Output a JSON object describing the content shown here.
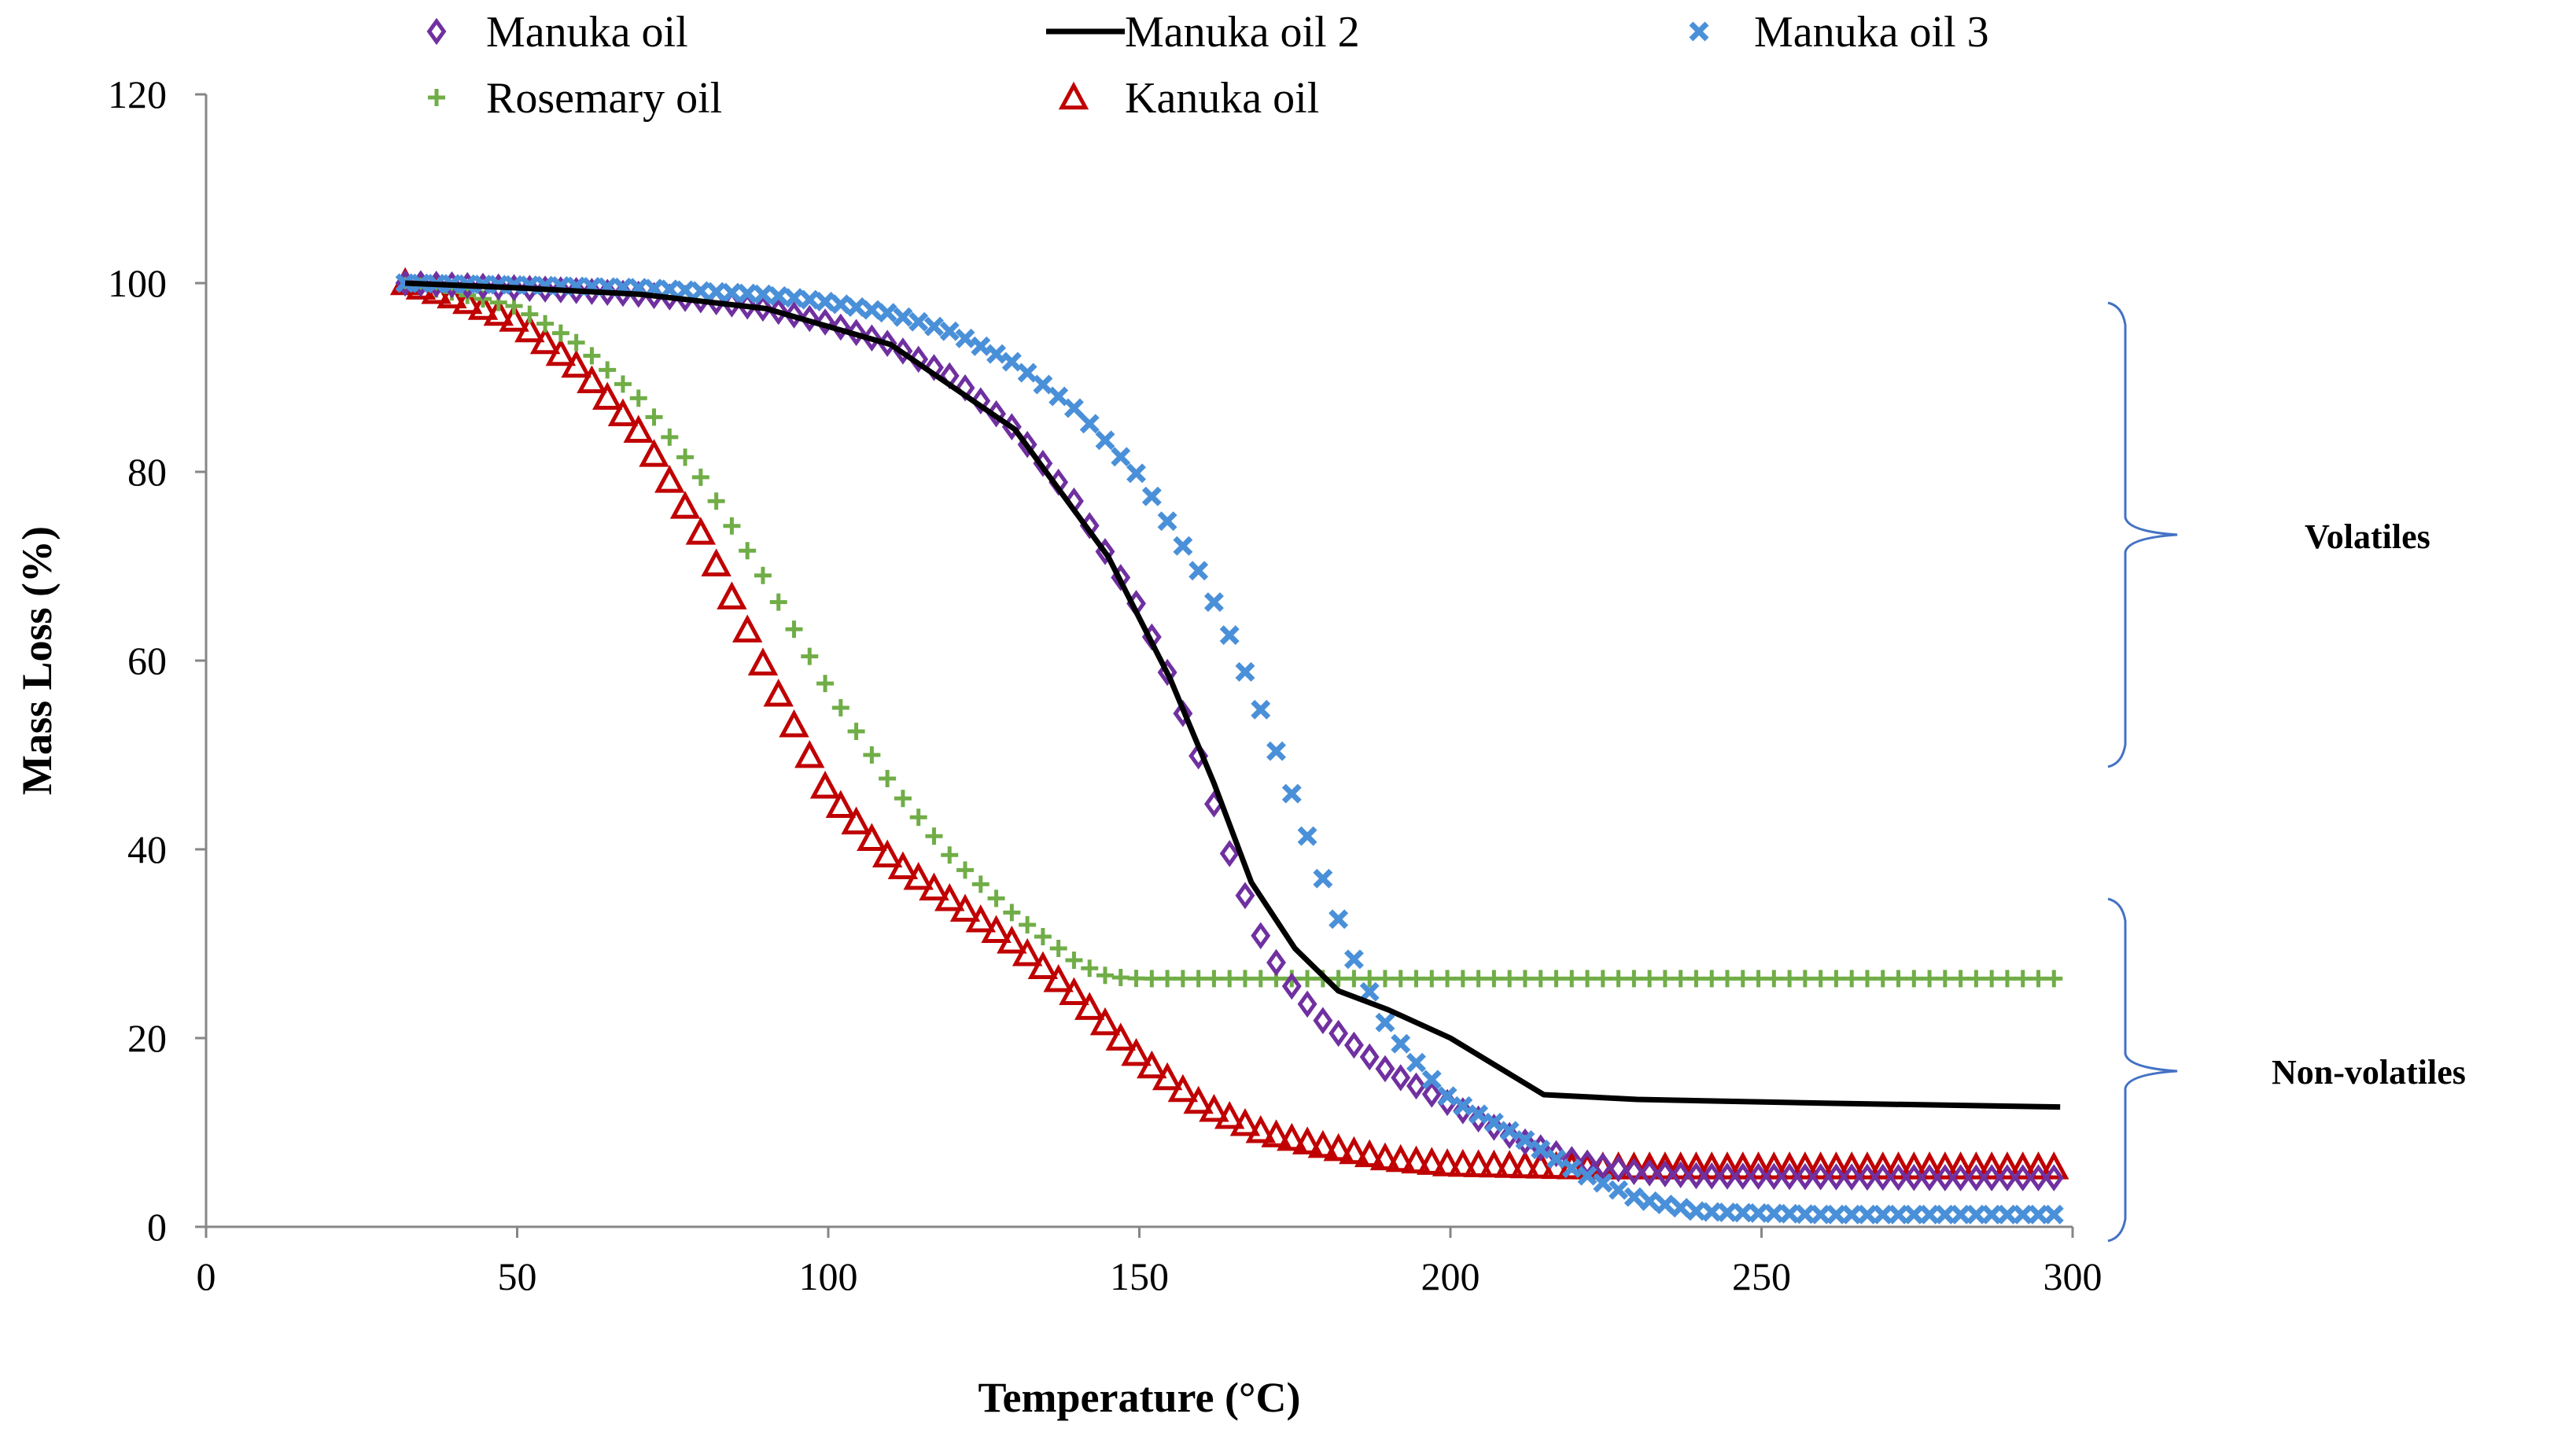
{
  "chart_data": {
    "type": "scatter",
    "title": "",
    "xlabel": "Temperature (°C)",
    "ylabel": "Mass Loss (%)",
    "xlim": [
      0,
      300
    ],
    "ylim": [
      0,
      120
    ],
    "xticks": [
      0,
      50,
      100,
      150,
      200,
      250,
      300
    ],
    "yticks": [
      0,
      20,
      40,
      60,
      80,
      100,
      120
    ],
    "grid": false,
    "legend_position": "top",
    "series": [
      {
        "name": "Manuka oil",
        "marker": "diamond",
        "color": "#7030A0",
        "points": [
          [
            32,
            100
          ],
          [
            40,
            99.8
          ],
          [
            50,
            99.5
          ],
          [
            60,
            99.2
          ],
          [
            70,
            98.8
          ],
          [
            80,
            98.2
          ],
          [
            90,
            97.3
          ],
          [
            100,
            95.8
          ],
          [
            110,
            93.5
          ],
          [
            120,
            90.0
          ],
          [
            130,
            84.5
          ],
          [
            140,
            76.5
          ],
          [
            150,
            65.5
          ],
          [
            155,
            58.0
          ],
          [
            160,
            49.0
          ],
          [
            165,
            38.5
          ],
          [
            170,
            30.0
          ],
          [
            175,
            25.0
          ],
          [
            180,
            21.5
          ],
          [
            190,
            16.5
          ],
          [
            200,
            13.0
          ],
          [
            210,
            9.5
          ],
          [
            220,
            7.0
          ],
          [
            230,
            5.8
          ],
          [
            240,
            5.4
          ],
          [
            260,
            5.3
          ],
          [
            280,
            5.2
          ],
          [
            298,
            5.2
          ]
        ]
      },
      {
        "name": "Manuka oil 2",
        "marker": "line",
        "color": "#000000",
        "points": [
          [
            32,
            100
          ],
          [
            50,
            99.5
          ],
          [
            70,
            98.8
          ],
          [
            90,
            97.3
          ],
          [
            110,
            93.5
          ],
          [
            130,
            84.5
          ],
          [
            145,
            71.0
          ],
          [
            155,
            58.0
          ],
          [
            162,
            47.0
          ],
          [
            168,
            36.5
          ],
          [
            175,
            29.5
          ],
          [
            182,
            25.0
          ],
          [
            190,
            23.0
          ],
          [
            200,
            20.0
          ],
          [
            210,
            16.0
          ],
          [
            215,
            14.0
          ],
          [
            230,
            13.5
          ],
          [
            260,
            13.1
          ],
          [
            298,
            12.7
          ]
        ]
      },
      {
        "name": "Manuka oil 3",
        "marker": "x",
        "color": "#4A90D9",
        "points": [
          [
            32,
            100
          ],
          [
            50,
            99.8
          ],
          [
            70,
            99.5
          ],
          [
            90,
            98.8
          ],
          [
            100,
            98.0
          ],
          [
            110,
            96.8
          ],
          [
            120,
            94.8
          ],
          [
            130,
            91.5
          ],
          [
            140,
            86.5
          ],
          [
            150,
            79.5
          ],
          [
            160,
            69.0
          ],
          [
            165,
            62.0
          ],
          [
            170,
            54.0
          ],
          [
            175,
            45.0
          ],
          [
            180,
            36.0
          ],
          [
            185,
            27.5
          ],
          [
            190,
            21.0
          ],
          [
            195,
            17.0
          ],
          [
            200,
            13.5
          ],
          [
            210,
            10.0
          ],
          [
            220,
            6.0
          ],
          [
            230,
            3.0
          ],
          [
            240,
            1.6
          ],
          [
            260,
            1.3
          ],
          [
            298,
            1.3
          ]
        ]
      },
      {
        "name": "Rosemary oil",
        "marker": "plus",
        "color": "#70AD47",
        "points": [
          [
            32,
            100
          ],
          [
            40,
            99.0
          ],
          [
            50,
            97.5
          ],
          [
            60,
            93.5
          ],
          [
            70,
            87.5
          ],
          [
            80,
            79.0
          ],
          [
            90,
            68.5
          ],
          [
            100,
            57.0
          ],
          [
            110,
            47.0
          ],
          [
            120,
            39.0
          ],
          [
            130,
            33.0
          ],
          [
            140,
            28.0
          ],
          [
            145,
            26.5
          ],
          [
            150,
            26.3
          ],
          [
            200,
            26.3
          ],
          [
            298,
            26.3
          ]
        ]
      },
      {
        "name": "Kanuka oil",
        "marker": "triangle",
        "color": "#C00000",
        "points": [
          [
            32,
            100
          ],
          [
            40,
            98.5
          ],
          [
            50,
            96.0
          ],
          [
            60,
            91.0
          ],
          [
            70,
            84.0
          ],
          [
            80,
            73.0
          ],
          [
            90,
            59.0
          ],
          [
            100,
            46.0
          ],
          [
            110,
            39.0
          ],
          [
            120,
            34.5
          ],
          [
            130,
            30.0
          ],
          [
            140,
            24.5
          ],
          [
            150,
            18.0
          ],
          [
            160,
            13.0
          ],
          [
            170,
            10.0
          ],
          [
            180,
            8.5
          ],
          [
            190,
            7.2
          ],
          [
            200,
            6.6
          ],
          [
            220,
            6.3
          ],
          [
            298,
            6.3
          ]
        ]
      }
    ],
    "annotations": [
      {
        "label": "Volatiles",
        "y_range": [
          50,
          100
        ]
      },
      {
        "label": "Non-volatiles",
        "y_range": [
          0,
          35
        ]
      }
    ]
  }
}
